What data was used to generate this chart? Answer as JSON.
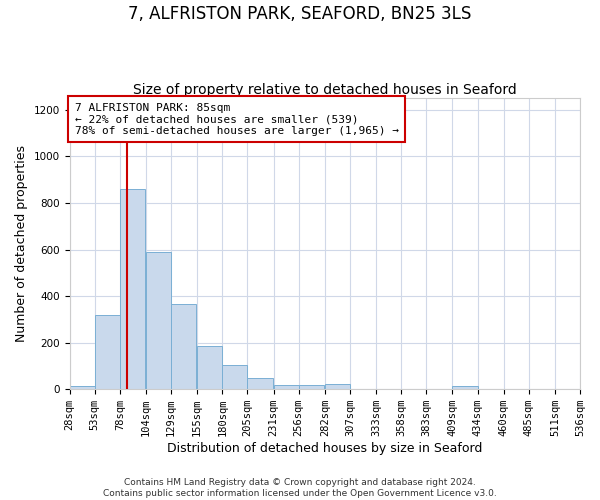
{
  "title": "7, ALFRISTON PARK, SEAFORD, BN25 3LS",
  "subtitle": "Size of property relative to detached houses in Seaford",
  "xlabel": "Distribution of detached houses by size in Seaford",
  "ylabel": "Number of detached properties",
  "bin_edges": [
    28,
    53,
    78,
    104,
    129,
    155,
    180,
    205,
    231,
    256,
    282,
    307,
    333,
    358,
    383,
    409,
    434,
    460,
    485,
    511,
    536
  ],
  "bar_heights": [
    12,
    320,
    860,
    590,
    365,
    185,
    105,
    47,
    20,
    20,
    22,
    3,
    0,
    0,
    0,
    12,
    0,
    0,
    0,
    0
  ],
  "bar_color": "#c9d9ec",
  "bar_edge_color": "#7aafd4",
  "property_value": 85,
  "vline_color": "#cc0000",
  "annotation_text": "7 ALFRISTON PARK: 85sqm\n← 22% of detached houses are smaller (539)\n78% of semi-detached houses are larger (1,965) →",
  "annotation_box_color": "#ffffff",
  "annotation_box_edge": "#cc0000",
  "ylim": [
    0,
    1250
  ],
  "yticks": [
    0,
    200,
    400,
    600,
    800,
    1000,
    1200
  ],
  "footer_line1": "Contains HM Land Registry data © Crown copyright and database right 2024.",
  "footer_line2": "Contains public sector information licensed under the Open Government Licence v3.0.",
  "bg_color": "#ffffff",
  "grid_color": "#d0d8e8",
  "title_fontsize": 12,
  "subtitle_fontsize": 10,
  "axis_label_fontsize": 9,
  "tick_fontsize": 7.5,
  "annotation_fontsize": 8,
  "footer_fontsize": 6.5
}
